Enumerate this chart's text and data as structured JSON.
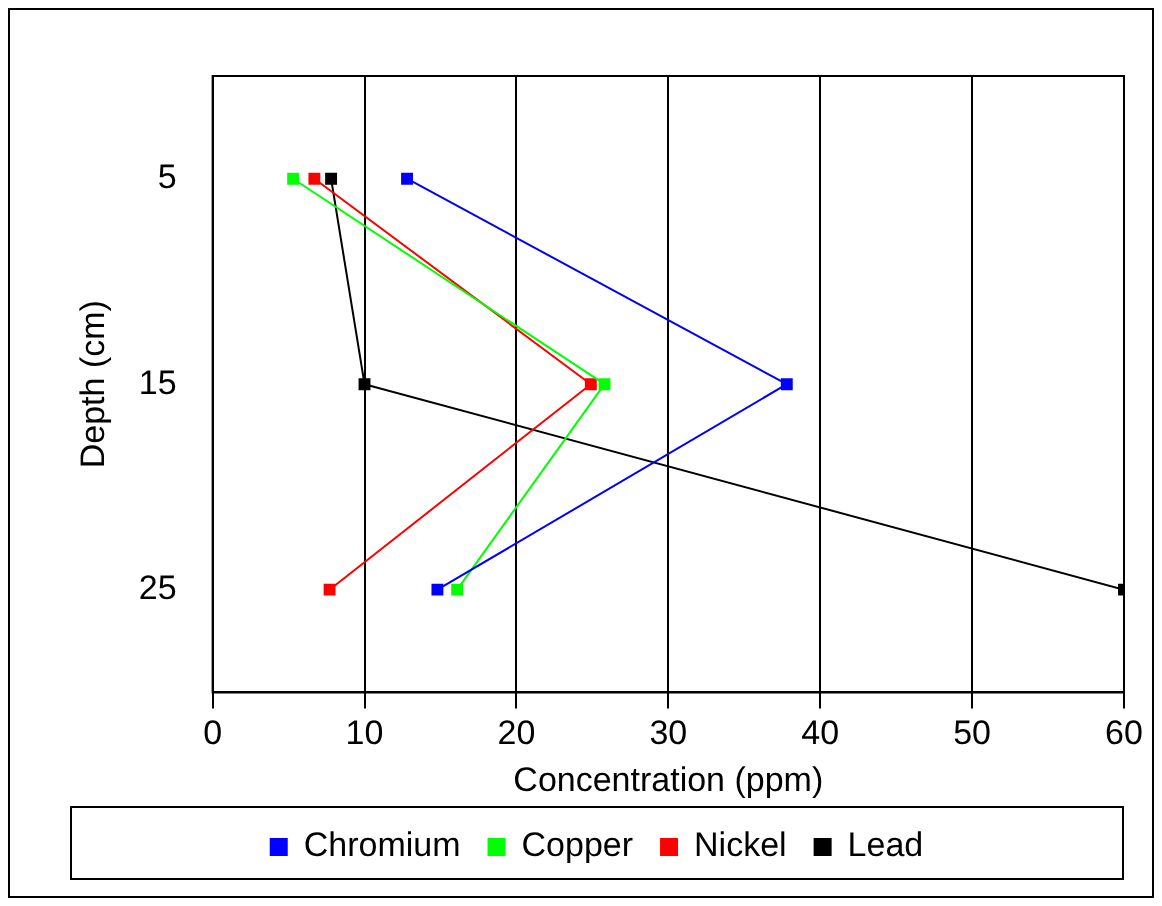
{
  "chart_data": {
    "type": "line",
    "xlabel": "Concentration (ppm)",
    "ylabel": "Depth (cm)",
    "xlim": [
      0,
      60
    ],
    "xticks": [
      0,
      10,
      20,
      30,
      40,
      50,
      60
    ],
    "ylim": [
      30,
      0
    ],
    "yticks": [
      5,
      15,
      25
    ],
    "grid": "x",
    "legend": "bottom",
    "marker": "square",
    "line_style": "solid",
    "series": [
      {
        "name": "Chromium",
        "color": "#0000ff",
        "x": [
          12.8,
          37.8,
          14.8
        ],
        "values": [
          5,
          15,
          25
        ]
      },
      {
        "name": "Copper",
        "color": "#00ff00",
        "x": [
          5.3,
          25.8,
          16.1
        ],
        "values": [
          5,
          15,
          25
        ]
      },
      {
        "name": "Nickel",
        "color": "#ff0000",
        "x": [
          6.7,
          24.9,
          7.7
        ],
        "values": [
          5,
          15,
          25
        ]
      },
      {
        "name": "Lead",
        "color": "#000000",
        "x": [
          7.8,
          10,
          60
        ],
        "values": [
          5,
          15,
          25
        ]
      }
    ]
  }
}
